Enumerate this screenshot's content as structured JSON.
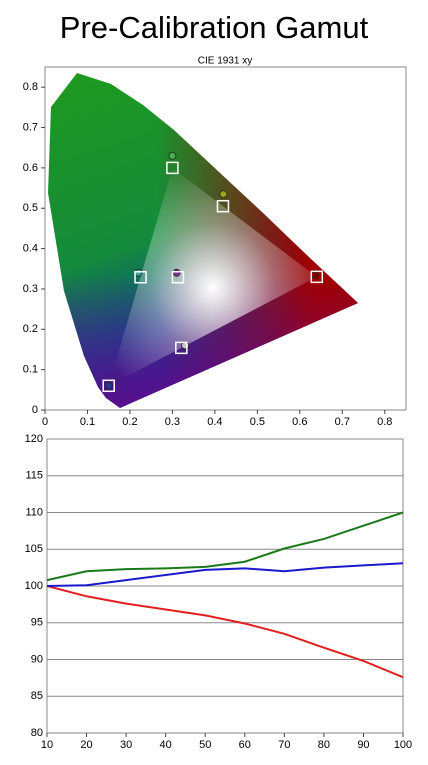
{
  "title": "Pre-Calibration Gamut",
  "chart_data": [
    {
      "type": "scatter",
      "title": "CIE 1931 xy",
      "xlim": [
        0,
        0.85
      ],
      "ylim": [
        0,
        0.85
      ],
      "xticks": [
        0,
        0.1,
        0.2,
        0.3,
        0.4,
        0.5,
        0.6,
        0.7,
        0.8
      ],
      "yticks": [
        0,
        0.1,
        0.2,
        0.3,
        0.4,
        0.5,
        0.6,
        0.7,
        0.8
      ],
      "series": [
        {
          "marker": "square",
          "color": "#ffffff",
          "x": [
            0.64,
            0.3,
            0.15,
            0.225,
            0.321,
            0.419,
            0.313
          ],
          "y": [
            0.33,
            0.6,
            0.06,
            0.329,
            0.154,
            0.505,
            0.329
          ]
        },
        {
          "marker": "circle",
          "colors": [
            "#7a0000",
            "#4caf50",
            "#2a3a8a",
            "#3fa0a0",
            "#8a2a9a",
            "#a0a020",
            "#c8c8c8"
          ],
          "x": [
            0.635,
            0.3,
            0.15,
            0.22,
            0.31,
            0.42,
            0.33
          ],
          "y": [
            0.335,
            0.63,
            0.06,
            0.34,
            0.34,
            0.535,
            0.16
          ]
        }
      ]
    },
    {
      "type": "line",
      "x": [
        10,
        20,
        30,
        40,
        50,
        60,
        70,
        80,
        90,
        100
      ],
      "xlim": [
        10,
        100
      ],
      "ylim": [
        80,
        120
      ],
      "xticks": [
        10,
        20,
        30,
        40,
        50,
        60,
        70,
        80,
        90,
        100
      ],
      "yticks": [
        80,
        85,
        90,
        95,
        100,
        105,
        110,
        115,
        120
      ],
      "grid": true,
      "series": [
        {
          "color": "#e02020",
          "values": [
            100,
            98.6,
            97.6,
            96.8,
            96.0,
            94.9,
            93.5,
            91.6,
            89.8,
            87.6
          ]
        },
        {
          "color": "#1a7a1a",
          "values": [
            100.8,
            102.0,
            102.3,
            102.4,
            102.6,
            103.3,
            105.1,
            106.4,
            108.2,
            110.0
          ]
        },
        {
          "color": "#1a1acc",
          "values": [
            100,
            100.1,
            100.8,
            101.5,
            102.2,
            102.4,
            102.0,
            102.5,
            102.8,
            103.1
          ]
        }
      ]
    }
  ]
}
